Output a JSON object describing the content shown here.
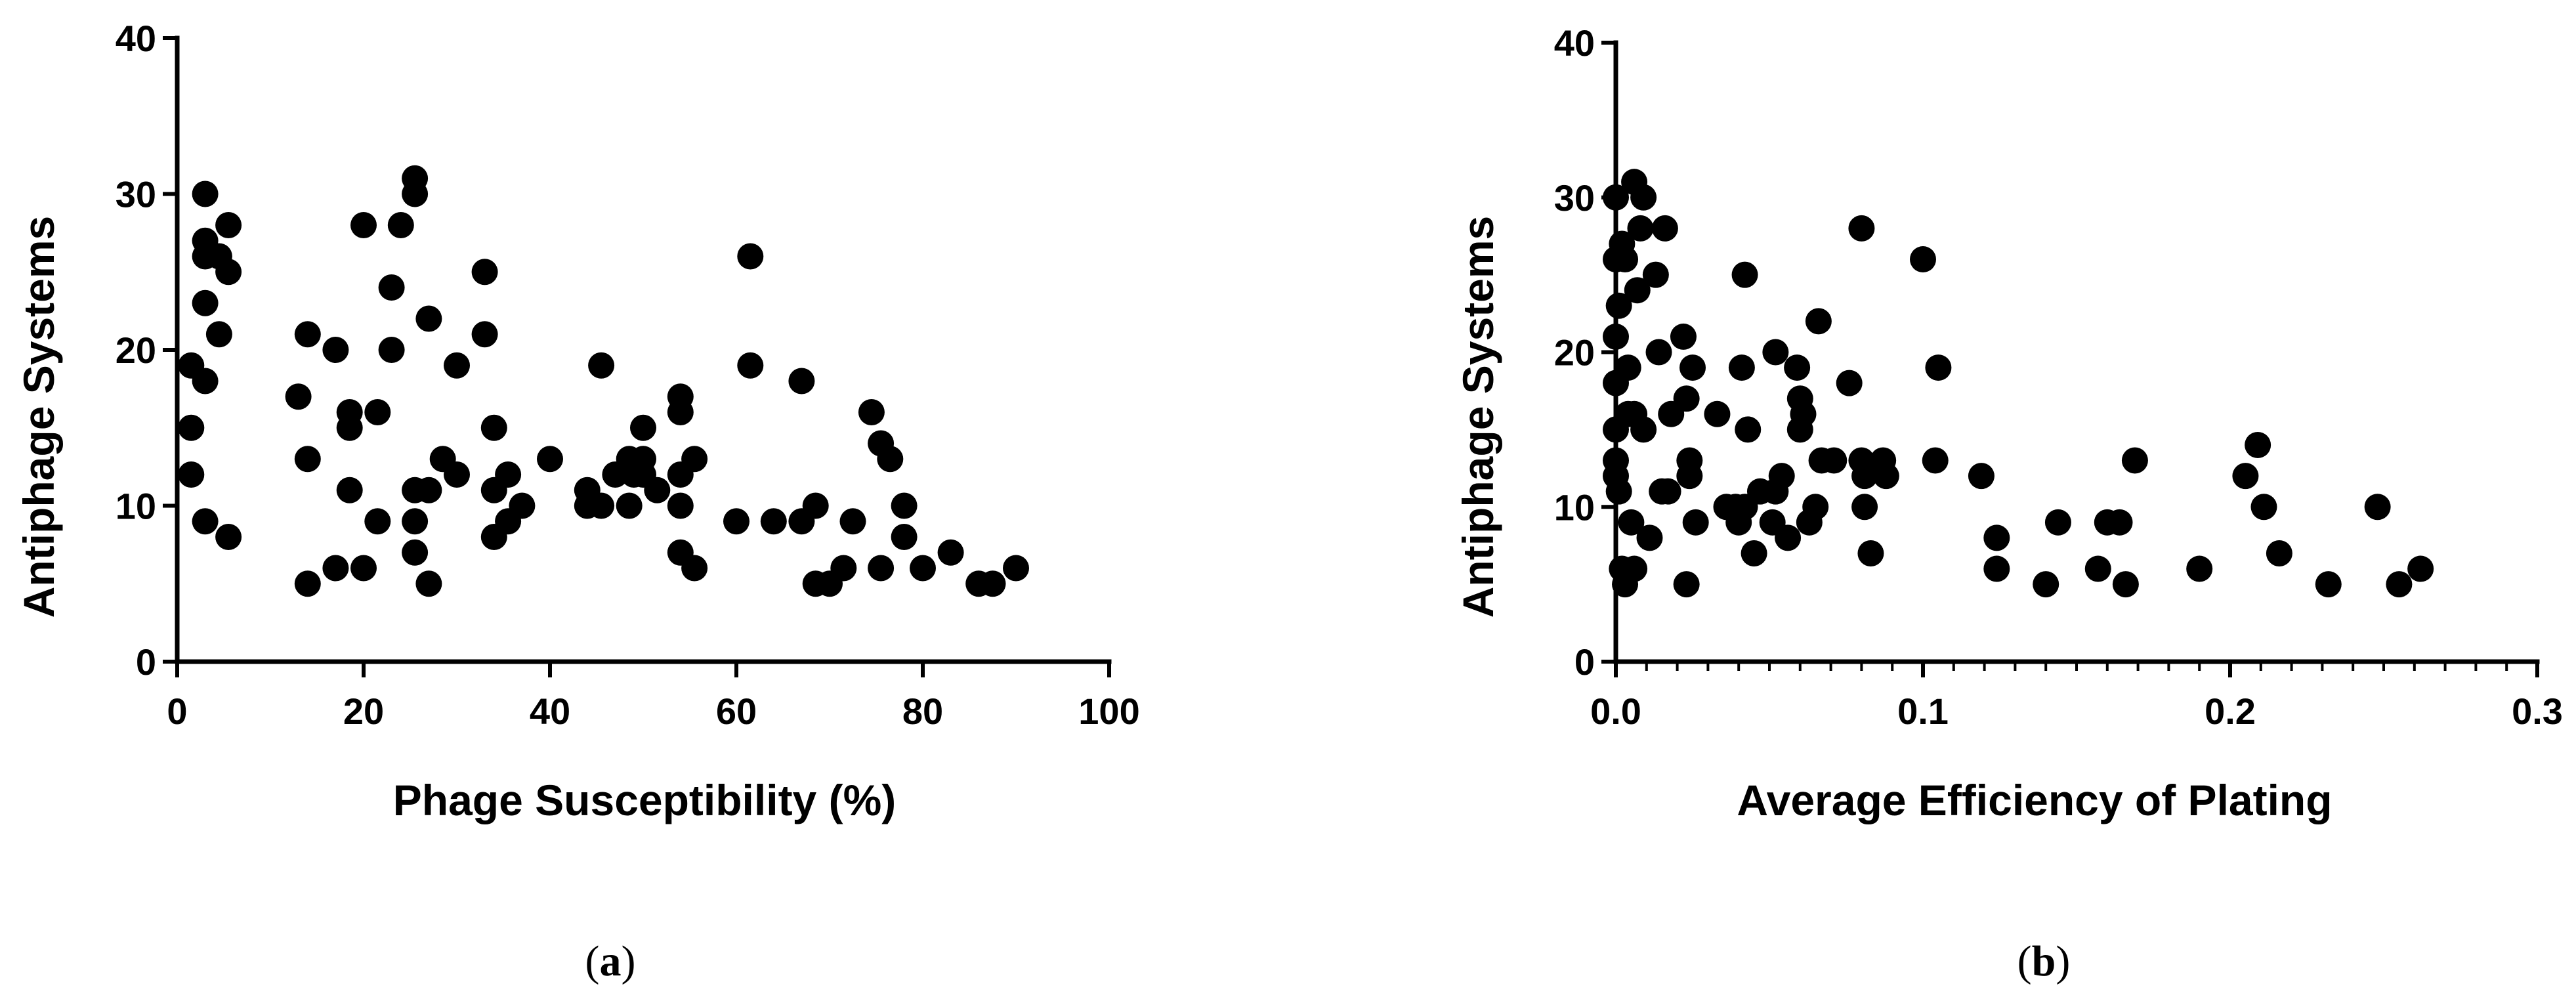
{
  "chart_data": [
    {
      "type": "scatter",
      "panel_label": "a",
      "xlabel": "Phage Susceptibility (%)",
      "ylabel": "Antiphage Systems",
      "xlim": [
        0,
        100
      ],
      "ylim": [
        0,
        40
      ],
      "xticks": [
        0,
        20,
        40,
        60,
        80,
        100
      ],
      "yticks": [
        0,
        10,
        20,
        30,
        40
      ],
      "xtick_labels": [
        "0",
        "20",
        "40",
        "60",
        "80",
        "100"
      ],
      "ytick_labels": [
        "0",
        "10",
        "20",
        "30",
        "40"
      ],
      "points": [
        [
          1.5,
          19
        ],
        [
          1.5,
          15
        ],
        [
          1.5,
          12
        ],
        [
          3,
          30
        ],
        [
          3,
          27
        ],
        [
          3,
          26
        ],
        [
          3,
          23
        ],
        [
          3,
          18
        ],
        [
          3,
          9
        ],
        [
          4.5,
          26
        ],
        [
          4.5,
          21
        ],
        [
          5.5,
          28
        ],
        [
          5.5,
          25
        ],
        [
          5.5,
          8
        ],
        [
          13,
          17
        ],
        [
          14,
          21
        ],
        [
          14,
          13
        ],
        [
          14,
          5
        ],
        [
          17,
          20
        ],
        [
          17,
          6
        ],
        [
          18.5,
          16
        ],
        [
          18.5,
          15
        ],
        [
          18.5,
          11
        ],
        [
          20,
          28
        ],
        [
          20,
          6
        ],
        [
          21.5,
          16
        ],
        [
          21.5,
          9
        ],
        [
          23,
          24
        ],
        [
          23,
          20
        ],
        [
          24,
          28
        ],
        [
          25.5,
          31
        ],
        [
          25.5,
          30
        ],
        [
          25.5,
          11
        ],
        [
          25.5,
          9
        ],
        [
          25.5,
          7
        ],
        [
          27,
          22
        ],
        [
          27,
          11
        ],
        [
          27,
          5
        ],
        [
          28.5,
          13
        ],
        [
          30,
          19
        ],
        [
          30,
          12
        ],
        [
          33,
          25
        ],
        [
          33,
          21
        ],
        [
          34,
          15
        ],
        [
          34,
          11
        ],
        [
          34,
          8
        ],
        [
          35.5,
          12
        ],
        [
          35.5,
          9
        ],
        [
          37,
          10
        ],
        [
          40,
          13
        ],
        [
          44,
          11
        ],
        [
          44,
          10
        ],
        [
          45.5,
          19
        ],
        [
          45.5,
          10
        ],
        [
          47,
          12
        ],
        [
          48.5,
          13
        ],
        [
          48.5,
          10
        ],
        [
          49,
          12
        ],
        [
          50,
          15
        ],
        [
          50,
          13
        ],
        [
          50,
          12
        ],
        [
          51.5,
          11
        ],
        [
          54,
          17
        ],
        [
          54,
          16
        ],
        [
          54,
          12
        ],
        [
          54,
          10
        ],
        [
          54,
          7
        ],
        [
          55.5,
          13
        ],
        [
          55.5,
          6
        ],
        [
          60,
          9
        ],
        [
          61.5,
          26
        ],
        [
          61.5,
          19
        ],
        [
          64,
          9
        ],
        [
          67,
          18
        ],
        [
          67,
          9
        ],
        [
          68.5,
          10
        ],
        [
          68.5,
          5
        ],
        [
          70,
          5
        ],
        [
          71.5,
          6
        ],
        [
          72.5,
          9
        ],
        [
          74.5,
          16
        ],
        [
          75.5,
          14
        ],
        [
          75.5,
          6
        ],
        [
          76.5,
          13
        ],
        [
          78,
          10
        ],
        [
          78,
          8
        ],
        [
          80,
          6
        ],
        [
          83,
          7
        ],
        [
          86,
          5
        ],
        [
          87.5,
          5
        ],
        [
          90,
          6
        ]
      ]
    },
    {
      "type": "scatter",
      "panel_label": "b",
      "xlabel": "Average Efficiency of Plating",
      "ylabel": "Antiphage Systems",
      "xlim": [
        0,
        0.3
      ],
      "ylim": [
        0,
        40
      ],
      "xticks": [
        0,
        0.1,
        0.2,
        0.3
      ],
      "yticks": [
        0,
        10,
        20,
        30,
        40
      ],
      "xtick_labels": [
        "0.0",
        "0.1",
        "0.2",
        "0.3"
      ],
      "ytick_labels": [
        "0",
        "10",
        "20",
        "30",
        "40"
      ],
      "points": [
        [
          0,
          30
        ],
        [
          0,
          26
        ],
        [
          0,
          21
        ],
        [
          0,
          18
        ],
        [
          0,
          15
        ],
        [
          0,
          13
        ],
        [
          0,
          12
        ],
        [
          0.001,
          23
        ],
        [
          0.001,
          11
        ],
        [
          0.002,
          27
        ],
        [
          0.002,
          6
        ],
        [
          0.003,
          26
        ],
        [
          0.003,
          5
        ],
        [
          0.004,
          19
        ],
        [
          0.004,
          16
        ],
        [
          0.005,
          9
        ],
        [
          0.006,
          31
        ],
        [
          0.006,
          16
        ],
        [
          0.006,
          6
        ],
        [
          0.007,
          24
        ],
        [
          0.008,
          28
        ],
        [
          0.009,
          30
        ],
        [
          0.009,
          15
        ],
        [
          0.011,
          8
        ],
        [
          0.013,
          25
        ],
        [
          0.014,
          20
        ],
        [
          0.015,
          11
        ],
        [
          0.016,
          28
        ],
        [
          0.017,
          11
        ],
        [
          0.018,
          16
        ],
        [
          0.022,
          21
        ],
        [
          0.023,
          17
        ],
        [
          0.023,
          5
        ],
        [
          0.024,
          13
        ],
        [
          0.024,
          12
        ],
        [
          0.025,
          19
        ],
        [
          0.026,
          9
        ],
        [
          0.033,
          16
        ],
        [
          0.036,
          10
        ],
        [
          0.039,
          10
        ],
        [
          0.04,
          9
        ],
        [
          0.041,
          19
        ],
        [
          0.042,
          10
        ],
        [
          0.042,
          25
        ],
        [
          0.043,
          15
        ],
        [
          0.045,
          7
        ],
        [
          0.047,
          11
        ],
        [
          0.051,
          9
        ],
        [
          0.052,
          11
        ],
        [
          0.052,
          20
        ],
        [
          0.054,
          12
        ],
        [
          0.056,
          8
        ],
        [
          0.059,
          19
        ],
        [
          0.06,
          17
        ],
        [
          0.06,
          15
        ],
        [
          0.061,
          16
        ],
        [
          0.063,
          9
        ],
        [
          0.065,
          10
        ],
        [
          0.066,
          22
        ],
        [
          0.067,
          13
        ],
        [
          0.071,
          13
        ],
        [
          0.076,
          18
        ],
        [
          0.08,
          28
        ],
        [
          0.08,
          13
        ],
        [
          0.081,
          12
        ],
        [
          0.081,
          10
        ],
        [
          0.083,
          7
        ],
        [
          0.087,
          13
        ],
        [
          0.088,
          12
        ],
        [
          0.1,
          26
        ],
        [
          0.104,
          13
        ],
        [
          0.105,
          19
        ],
        [
          0.119,
          12
        ],
        [
          0.124,
          8
        ],
        [
          0.124,
          6
        ],
        [
          0.14,
          5
        ],
        [
          0.144,
          9
        ],
        [
          0.157,
          6
        ],
        [
          0.16,
          9
        ],
        [
          0.164,
          9
        ],
        [
          0.166,
          5
        ],
        [
          0.169,
          13
        ],
        [
          0.19,
          6
        ],
        [
          0.205,
          12
        ],
        [
          0.209,
          14
        ],
        [
          0.211,
          10
        ],
        [
          0.216,
          7
        ],
        [
          0.232,
          5
        ],
        [
          0.248,
          10
        ],
        [
          0.255,
          5
        ],
        [
          0.262,
          6
        ]
      ]
    }
  ]
}
